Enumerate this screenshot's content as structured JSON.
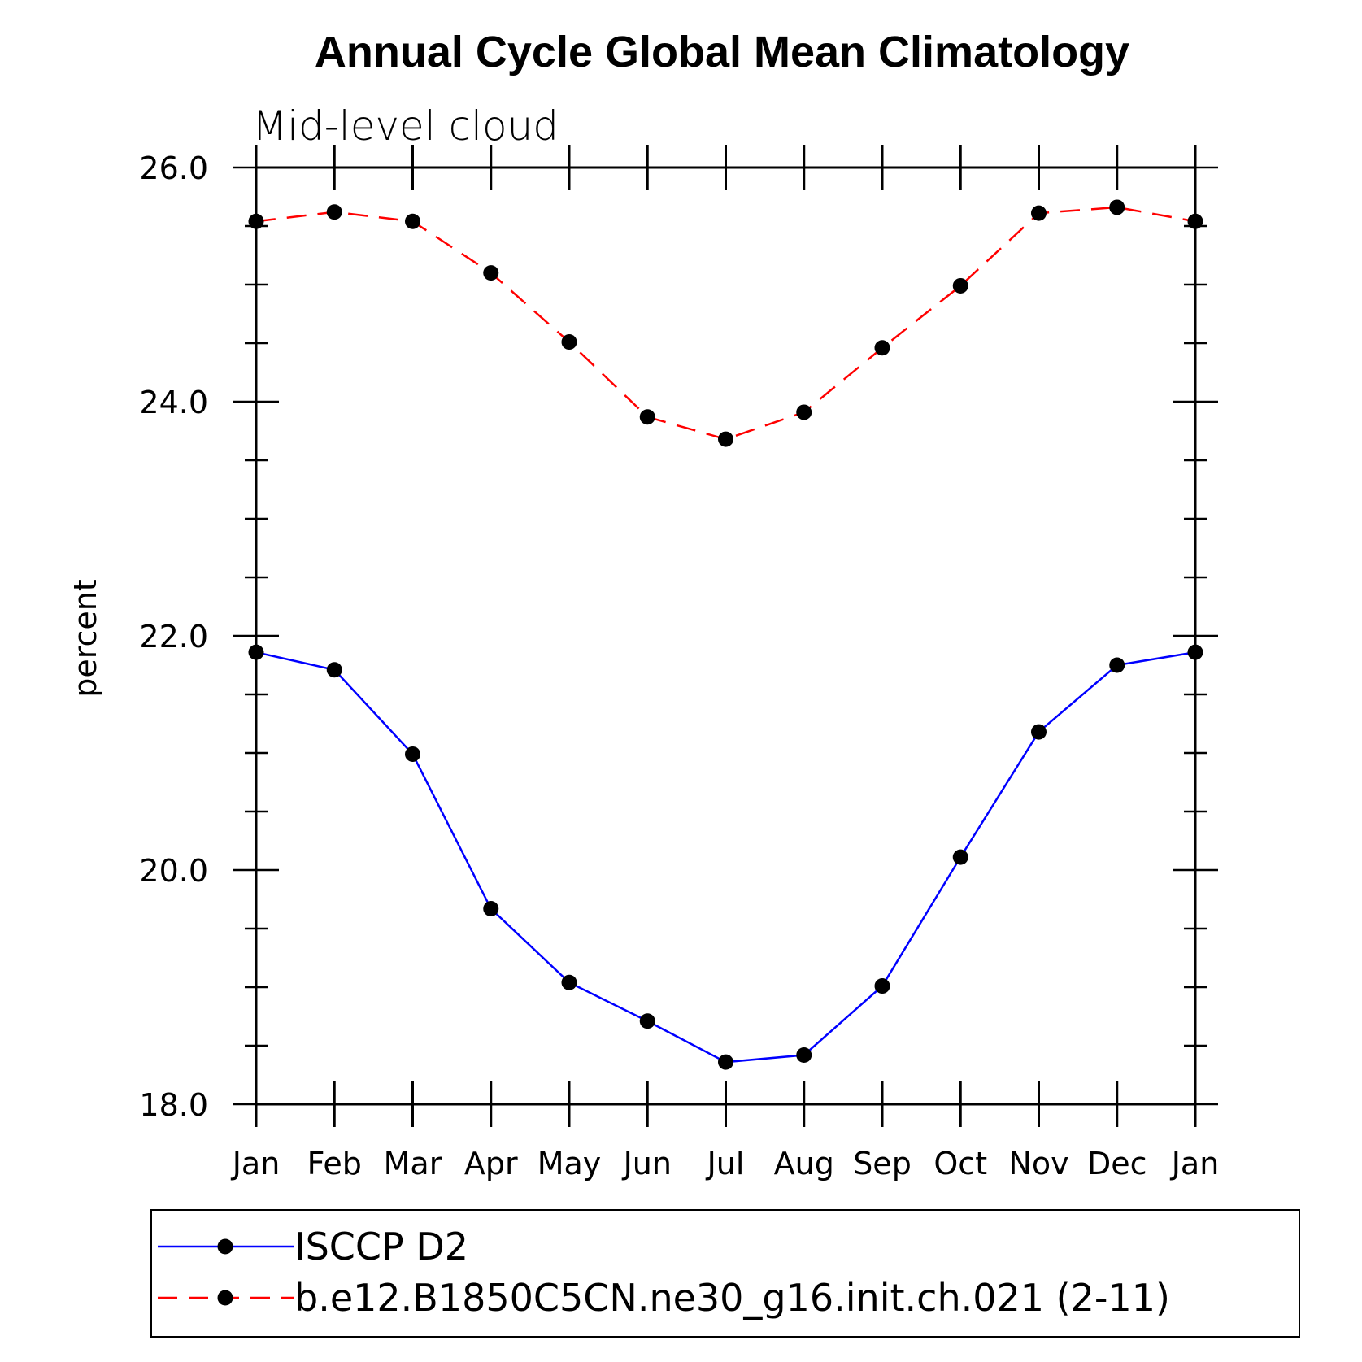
{
  "chart_data": {
    "type": "line",
    "title": "Annual Cycle Global Mean Climatology",
    "subtitle": "Mid-level cloud",
    "ylabel": "percent",
    "xlabel": "",
    "categories": [
      "Jan",
      "Feb",
      "Mar",
      "Apr",
      "May",
      "Jun",
      "Jul",
      "Aug",
      "Sep",
      "Oct",
      "Nov",
      "Dec",
      "Jan"
    ],
    "ylim": [
      18.0,
      26.0
    ],
    "yticks": [
      "18.0",
      "20.0",
      "22.0",
      "24.0",
      "26.0"
    ],
    "grid": false,
    "legend_position": "bottom",
    "series": [
      {
        "name": "ISCCP D2",
        "color": "#0000ff",
        "dash": "solid",
        "marker": "filled-circle",
        "values": [
          21.86,
          21.71,
          20.99,
          19.67,
          19.04,
          18.71,
          18.36,
          18.42,
          19.01,
          20.11,
          21.18,
          21.75,
          21.86
        ]
      },
      {
        "name": "b.e12.B1850C5CN.ne30_g16.init.ch.021 (2-11)",
        "color": "#ff0000",
        "dash": "dashed",
        "marker": "filled-circle",
        "values": [
          25.54,
          25.62,
          25.54,
          25.1,
          24.51,
          23.87,
          23.68,
          23.91,
          24.46,
          24.99,
          25.61,
          25.66,
          25.54
        ]
      }
    ]
  }
}
